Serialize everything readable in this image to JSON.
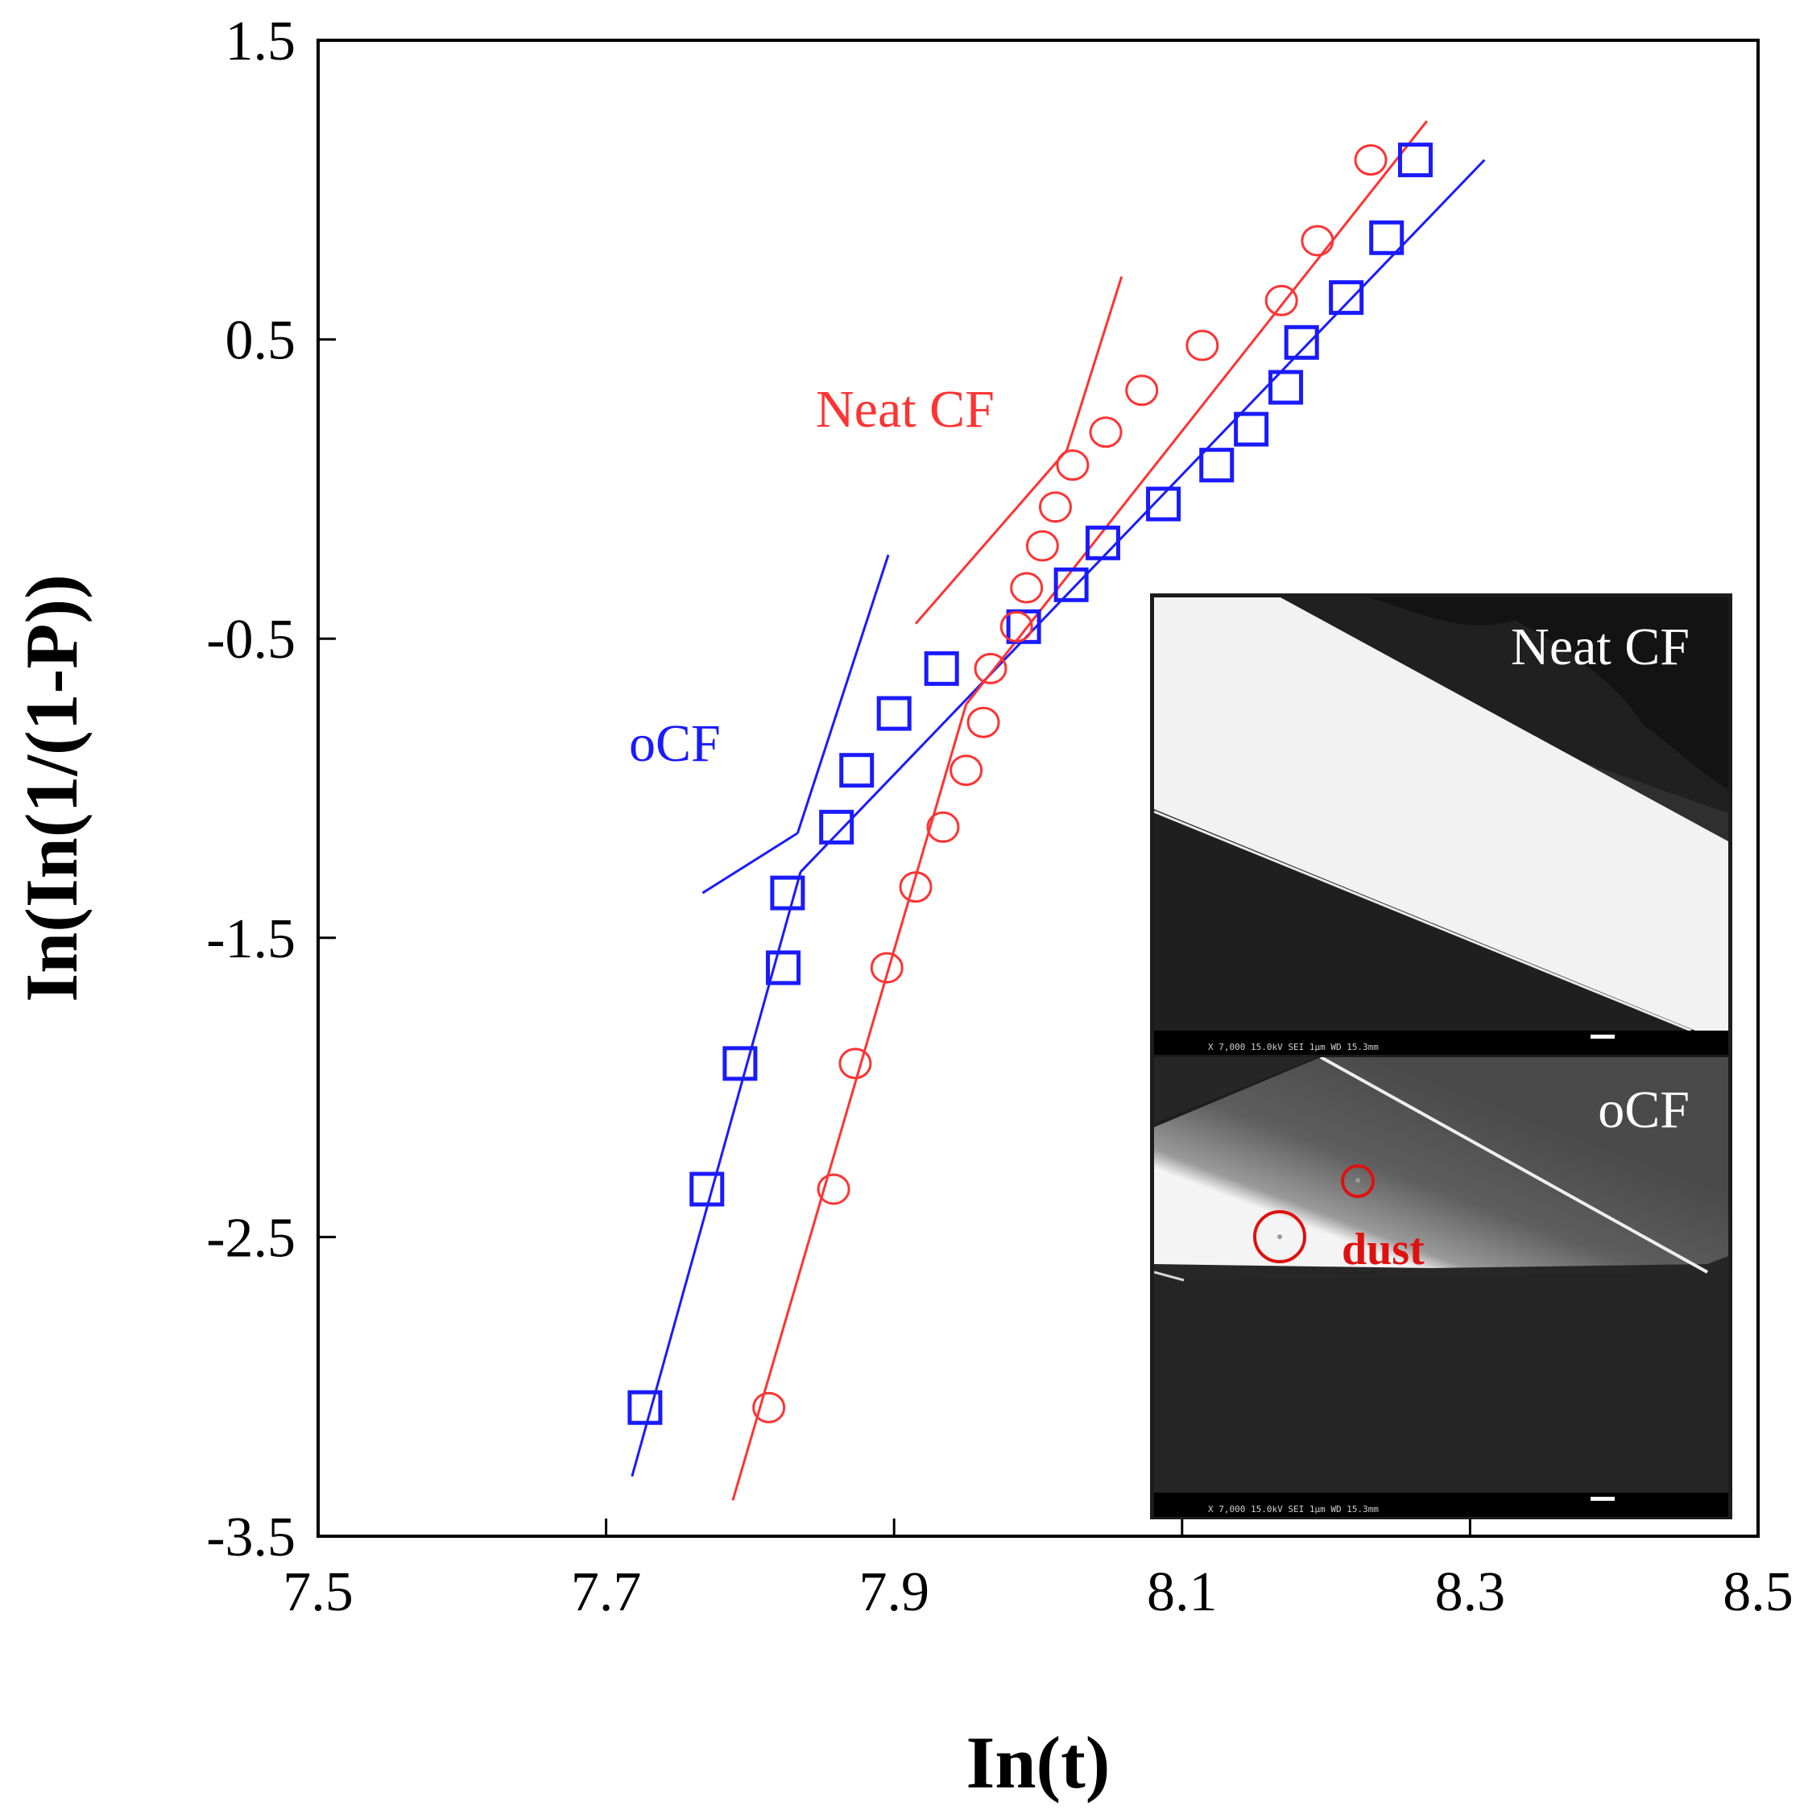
{
  "chart_data": {
    "type": "scatter",
    "xlabel": "In(t)",
    "ylabel": "In(In(1/(1-P))",
    "xlim": [
      7.5,
      8.5
    ],
    "ylim": [
      -3.5,
      1.5
    ],
    "x_ticks": [
      "7.5",
      "7.7",
      "7.9",
      "8.1",
      "8.3",
      "8.5"
    ],
    "y_ticks": [
      "1.5",
      "0.5",
      "-0.5",
      "-1.5",
      "-2.5",
      "-3.5"
    ],
    "series": [
      {
        "name": "oCF",
        "color": "#1a1aff",
        "marker": "square",
        "x": [
          7.727,
          7.77,
          7.793,
          7.823,
          7.826,
          7.86,
          7.874,
          7.9,
          7.933,
          7.99,
          8.023,
          8.045,
          8.087,
          8.124,
          8.148,
          8.172,
          8.183,
          8.214,
          8.242,
          8.262
        ],
        "y": [
          -3.07,
          -2.34,
          -1.92,
          -1.6,
          -1.35,
          -1.13,
          -0.94,
          -0.75,
          -0.6,
          -0.46,
          -0.32,
          -0.18,
          -0.05,
          0.08,
          0.2,
          0.34,
          0.49,
          0.64,
          0.84,
          1.1
        ],
        "fit_lines": [
          {
            "x": [
              7.718,
              7.835
            ],
            "y": [
              -3.3,
              -1.28
            ]
          },
          {
            "x": [
              7.835,
              8.31
            ],
            "y": [
              -1.28,
              1.1
            ]
          },
          {
            "x": [
              7.767,
              7.833
            ],
            "y": [
              -1.35,
              -1.15
            ]
          },
          {
            "x": [
              7.833,
              7.896
            ],
            "y": [
              -1.15,
              -0.22
            ]
          }
        ]
      },
      {
        "name": "Neat CF",
        "color": "#ff3333",
        "marker": "circle",
        "x": [
          7.813,
          7.858,
          7.873,
          7.895,
          7.915,
          7.934,
          7.95,
          7.962,
          7.967,
          7.985,
          7.992,
          8.003,
          8.012,
          8.024,
          8.047,
          8.072,
          8.114,
          8.169,
          8.194,
          8.231
        ],
        "y": [
          -3.07,
          -2.34,
          -1.92,
          -1.6,
          -1.33,
          -1.13,
          -0.94,
          -0.78,
          -0.6,
          -0.46,
          -0.33,
          -0.19,
          -0.06,
          0.08,
          0.19,
          0.33,
          0.48,
          0.63,
          0.83,
          1.1
        ],
        "fit_lines": [
          {
            "x": [
              7.788,
              7.95
            ],
            "y": [
              -3.38,
              -0.72
            ]
          },
          {
            "x": [
              7.95,
              8.27
            ],
            "y": [
              -0.72,
              1.23
            ]
          },
          {
            "x": [
              7.915,
              8.02
            ],
            "y": [
              -0.45,
              0.13
            ]
          },
          {
            "x": [
              8.02,
              8.058
            ],
            "y": [
              0.13,
              0.71
            ]
          }
        ]
      }
    ],
    "annotations": {
      "neat_cf": "Neat CF",
      "ocf": "oCF"
    },
    "inset": {
      "top_label": "Neat CF",
      "bottom_label": "oCF",
      "dust_label": "dust",
      "top_bar_text": "X 7,000   15.0kV SEI        1μm    WD 15.3mm",
      "bottom_bar_text": "X 7,000   15.0kV SEI        1μm    WD 15.3mm"
    }
  }
}
